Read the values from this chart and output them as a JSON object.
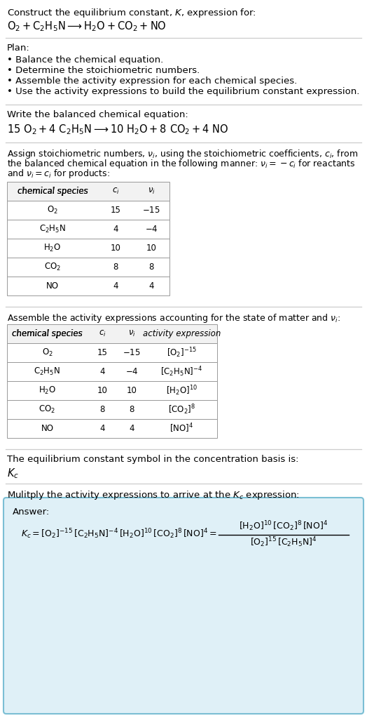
{
  "title_line1": "Construct the equilibrium constant, $K$, expression for:",
  "title_line2": "$\\mathrm{O_2 + C_2H_5N \\longrightarrow H_2O + CO_2 + NO}$",
  "plan_header": "Plan:",
  "plan_items": [
    "• Balance the chemical equation.",
    "• Determine the stoichiometric numbers.",
    "• Assemble the activity expression for each chemical species.",
    "• Use the activity expressions to build the equilibrium constant expression."
  ],
  "balanced_header": "Write the balanced chemical equation:",
  "balanced_eq": "$\\mathrm{15\\ O_2 + 4\\ C_2H_5N \\longrightarrow 10\\ H_2O + 8\\ CO_2 + 4\\ NO}$",
  "stoich_lines": [
    "Assign stoichiometric numbers, $\\nu_i$, using the stoichiometric coefficients, $c_i$, from",
    "the balanced chemical equation in the following manner: $\\nu_i = -c_i$ for reactants",
    "and $\\nu_i = c_i$ for products:"
  ],
  "table1_cols": [
    "chemical species",
    "$c_i$",
    "$\\nu_i$"
  ],
  "table1_rows": [
    [
      "$\\mathrm{O_2}$",
      "15",
      "$-15$"
    ],
    [
      "$\\mathrm{C_2H_5N}$",
      "4",
      "$-4$"
    ],
    [
      "$\\mathrm{H_2O}$",
      "10",
      "10"
    ],
    [
      "$\\mathrm{CO_2}$",
      "8",
      "8"
    ],
    [
      "NO",
      "4",
      "4"
    ]
  ],
  "activity_header": "Assemble the activity expressions accounting for the state of matter and $\\nu_i$:",
  "table2_cols": [
    "chemical species",
    "$c_i$",
    "$\\nu_i$",
    "activity expression"
  ],
  "table2_rows": [
    [
      "$\\mathrm{O_2}$",
      "15",
      "$-15$",
      "$[\\mathrm{O_2}]^{-15}$"
    ],
    [
      "$\\mathrm{C_2H_5N}$",
      "4",
      "$-4$",
      "$[\\mathrm{C_2H_5N}]^{-4}$"
    ],
    [
      "$\\mathrm{H_2O}$",
      "10",
      "10",
      "$[\\mathrm{H_2O}]^{10}$"
    ],
    [
      "$\\mathrm{CO_2}$",
      "8",
      "8",
      "$[\\mathrm{CO_2}]^{8}$"
    ],
    [
      "NO",
      "4",
      "4",
      "$[\\mathrm{NO}]^{4}$"
    ]
  ],
  "kc_header": "The equilibrium constant symbol in the concentration basis is:",
  "kc_symbol": "$K_c$",
  "multiply_header": "Mulitply the activity expressions to arrive at the $K_c$ expression:",
  "answer_label": "Answer:",
  "answer_kc_lhs": "$K_c = [\\mathrm{O_2}]^{-15}\\,[\\mathrm{C_2H_5N}]^{-4}\\,[\\mathrm{H_2O}]^{10}\\,[\\mathrm{CO_2}]^{8}\\,[\\mathrm{NO}]^{4} =$",
  "answer_frac_num": "$[\\mathrm{H_2O}]^{10}\\,[\\mathrm{CO_2}]^{8}\\,[\\mathrm{NO}]^{4}$",
  "answer_frac_den": "$[\\mathrm{O_2}]^{15}\\,[\\mathrm{C_2H_5N}]^{4}$",
  "bg_color": "#ffffff",
  "table_header_bg": "#f2f2f2",
  "answer_box_bg": "#dff0f7",
  "answer_box_border": "#7bbfd4",
  "text_color": "#000000",
  "line_color": "#cccccc",
  "fs": 9.5,
  "fs_small": 8.5,
  "fs_math": 10.5
}
